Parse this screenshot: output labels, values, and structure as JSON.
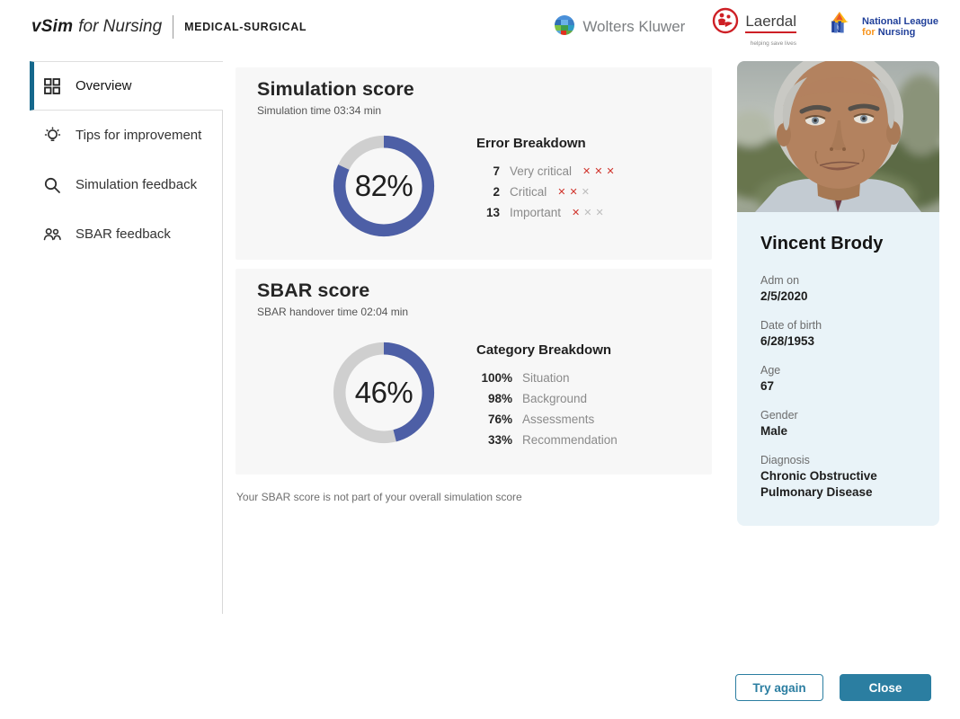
{
  "header": {
    "brand": {
      "product": "vSim",
      "suffix": "for Nursing",
      "edition": "MEDICAL-SURGICAL"
    },
    "partners": {
      "wolters_kluwer": {
        "name": "Wolters Kluwer"
      },
      "laerdal": {
        "name": "Laerdal",
        "tagline": "helping save lives"
      },
      "nln": {
        "line1": "National League",
        "line2_prefix": "for",
        "line2": "Nursing"
      }
    }
  },
  "sidebar": {
    "items": [
      {
        "label": "Overview",
        "icon": "grid-icon",
        "active": true
      },
      {
        "label": "Tips for improvement",
        "icon": "lightbulb-icon",
        "active": false
      },
      {
        "label": "Simulation feedback",
        "icon": "search-icon",
        "active": false
      },
      {
        "label": "SBAR feedback",
        "icon": "people-icon",
        "active": false
      }
    ]
  },
  "simulation_score": {
    "title": "Simulation score",
    "subtitle": "Simulation time 03:34 min",
    "percent": 82,
    "percent_label": "82%",
    "breakdown_title": "Error Breakdown",
    "rows": [
      {
        "count": "7",
        "label": "Very critical",
        "marks": [
          "red",
          "red",
          "red"
        ]
      },
      {
        "count": "2",
        "label": "Critical",
        "marks": [
          "red",
          "red",
          "gray"
        ]
      },
      {
        "count": "13",
        "label": "Important",
        "marks": [
          "red",
          "gray",
          "gray"
        ]
      }
    ]
  },
  "sbar_score": {
    "title": "SBAR score",
    "subtitle": "SBAR handover time 02:04 min",
    "percent": 46,
    "percent_label": "46%",
    "breakdown_title": "Category Breakdown",
    "rows": [
      {
        "value": "100%",
        "label": "Situation"
      },
      {
        "value": "98%",
        "label": "Background"
      },
      {
        "value": "76%",
        "label": "Assessments"
      },
      {
        "value": "33%",
        "label": "Recommendation"
      }
    ]
  },
  "note": "Your SBAR score is not part of your overall simulation score",
  "patient": {
    "name": "Vincent Brody",
    "fields": [
      {
        "label": "Adm on",
        "value": "2/5/2020"
      },
      {
        "label": "Date of birth",
        "value": "6/28/1953"
      },
      {
        "label": "Age",
        "value": "67"
      },
      {
        "label": "Gender",
        "value": "Male"
      },
      {
        "label": "Diagnosis",
        "value": "Chronic Obstructive Pulmonary Disease"
      }
    ]
  },
  "actions": {
    "try_again": "Try again",
    "close": "Close"
  },
  "colors": {
    "accent_teal": "#2b7ea1",
    "sidebar_accent": "#15688c",
    "donut_fill": "#4d5fa6",
    "donut_track": "#cfcfcf",
    "error_red": "#d0342c",
    "mark_gray": "#bdbdbd",
    "card_bg": "#f7f7f7",
    "patient_panel_bg": "#e9f3f8"
  },
  "chart_data": [
    {
      "type": "pie",
      "variant": "donut",
      "title": "Simulation score",
      "value": 82,
      "unit": "%",
      "series": [
        {
          "name": "score",
          "value": 82
        },
        {
          "name": "remainder",
          "value": 18
        }
      ],
      "start_angle": "top",
      "direction": "clockwise"
    },
    {
      "type": "pie",
      "variant": "donut",
      "title": "SBAR score",
      "value": 46,
      "unit": "%",
      "series": [
        {
          "name": "score",
          "value": 46
        },
        {
          "name": "remainder",
          "value": 54
        }
      ],
      "start_angle": "top",
      "direction": "clockwise"
    }
  ]
}
